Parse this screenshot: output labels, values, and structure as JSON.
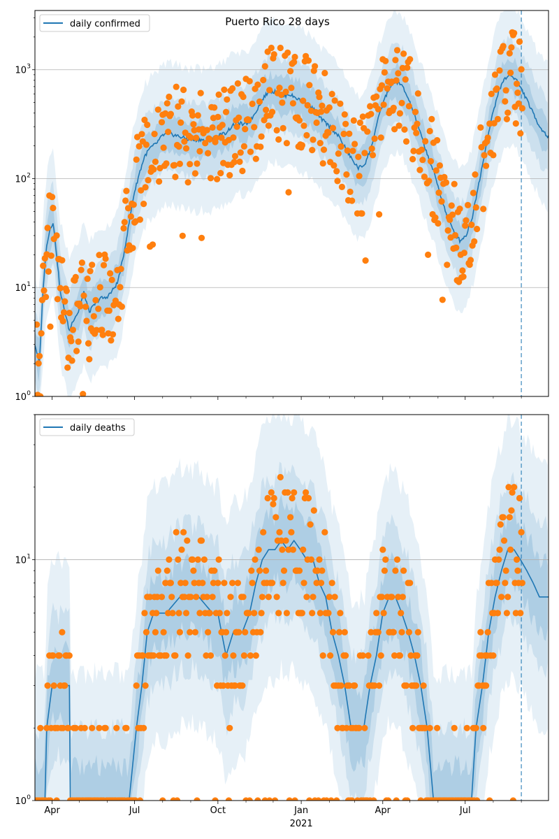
{
  "colors": {
    "line": "#1f77b4",
    "points": "#ff7f0e",
    "band": "#1f77b4",
    "grid": "#b0b0b0",
    "axis": "#000000"
  },
  "figure": {
    "title": "Puerto Rico 28 days",
    "x_tick_labels": [
      "Apr",
      "Jul",
      "Oct",
      "Jan",
      "Apr",
      "Jul"
    ],
    "x_year_label": "2021"
  },
  "chart_data": [
    {
      "type": "line",
      "name": "cases",
      "title": "Puerto Rico 28 days",
      "legend_label": "daily confirmed",
      "legend_position": "upper-left",
      "yscale": "log",
      "ylim": [
        1,
        3500
      ],
      "xlim": [
        "2020-03-13",
        "2021-10-01"
      ],
      "y_ticks": [
        1,
        10,
        100,
        1000
      ],
      "y_tick_labels": [
        {
          "base": "10",
          "exp": "0"
        },
        {
          "base": "10",
          "exp": "1"
        },
        {
          "base": "10",
          "exp": "2"
        },
        {
          "base": "10",
          "exp": "3"
        }
      ],
      "grid": "horizontal",
      "forecast_date": "2021-09-01",
      "series": [
        {
          "name": "daily confirmed",
          "points": [
            [
              "2020-03-13",
              3
            ],
            [
              "2020-03-18",
              2
            ],
            [
              "2020-03-22",
              10
            ],
            [
              "2020-03-26",
              25
            ],
            [
              "2020-03-30",
              35
            ],
            [
              "2020-04-02",
              40
            ],
            [
              "2020-04-06",
              20
            ],
            [
              "2020-04-10",
              9
            ],
            [
              "2020-04-15",
              6
            ],
            [
              "2020-04-20",
              4
            ],
            [
              "2020-04-24",
              5
            ],
            [
              "2020-04-30",
              6
            ],
            [
              "2020-05-06",
              9
            ],
            [
              "2020-05-12",
              6
            ],
            [
              "2020-05-18",
              7
            ],
            [
              "2020-05-24",
              8
            ],
            [
              "2020-05-30",
              8
            ],
            [
              "2020-06-05",
              9
            ],
            [
              "2020-06-12",
              11
            ],
            [
              "2020-06-18",
              18
            ],
            [
              "2020-06-24",
              35
            ],
            [
              "2020-06-30",
              70
            ],
            [
              "2020-07-06",
              110
            ],
            [
              "2020-07-12",
              160
            ],
            [
              "2020-07-18",
              190
            ],
            [
              "2020-07-25",
              210
            ],
            [
              "2020-08-01",
              250
            ],
            [
              "2020-08-08",
              260
            ],
            [
              "2020-08-15",
              250
            ],
            [
              "2020-08-22",
              240
            ],
            [
              "2020-08-29",
              230
            ],
            [
              "2020-09-05",
              225
            ],
            [
              "2020-09-12",
              230
            ],
            [
              "2020-09-18",
              220
            ],
            [
              "2020-09-25",
              230
            ],
            [
              "2020-10-02",
              250
            ],
            [
              "2020-10-09",
              260
            ],
            [
              "2020-10-16",
              300
            ],
            [
              "2020-10-23",
              330
            ],
            [
              "2020-10-30",
              310
            ],
            [
              "2020-11-06",
              340
            ],
            [
              "2020-11-13",
              430
            ],
            [
              "2020-11-20",
              550
            ],
            [
              "2020-11-27",
              640
            ],
            [
              "2020-12-04",
              620
            ],
            [
              "2020-12-11",
              560
            ],
            [
              "2020-12-18",
              600
            ],
            [
              "2020-12-25",
              560
            ],
            [
              "2021-01-01",
              520
            ],
            [
              "2021-01-08",
              480
            ],
            [
              "2021-01-15",
              430
            ],
            [
              "2021-01-22",
              360
            ],
            [
              "2021-01-29",
              320
            ],
            [
              "2021-02-05",
              280
            ],
            [
              "2021-02-12",
              240
            ],
            [
              "2021-02-19",
              190
            ],
            [
              "2021-02-26",
              150
            ],
            [
              "2021-03-05",
              125
            ],
            [
              "2021-03-12",
              135
            ],
            [
              "2021-03-19",
              190
            ],
            [
              "2021-03-26",
              330
            ],
            [
              "2021-04-02",
              520
            ],
            [
              "2021-04-09",
              700
            ],
            [
              "2021-04-16",
              780
            ],
            [
              "2021-04-23",
              700
            ],
            [
              "2021-04-30",
              520
            ],
            [
              "2021-05-07",
              360
            ],
            [
              "2021-05-14",
              240
            ],
            [
              "2021-05-21",
              160
            ],
            [
              "2021-05-28",
              110
            ],
            [
              "2021-06-04",
              70
            ],
            [
              "2021-06-11",
              45
            ],
            [
              "2021-06-18",
              33
            ],
            [
              "2021-06-25",
              27
            ],
            [
              "2021-07-02",
              30
            ],
            [
              "2021-07-09",
              45
            ],
            [
              "2021-07-16",
              90
            ],
            [
              "2021-07-23",
              180
            ],
            [
              "2021-07-30",
              350
            ],
            [
              "2021-08-06",
              600
            ],
            [
              "2021-08-13",
              820
            ],
            [
              "2021-08-20",
              900
            ],
            [
              "2021-08-27",
              800
            ],
            [
              "2021-09-03",
              620
            ],
            [
              "2021-09-10",
              470
            ],
            [
              "2021-09-17",
              350
            ],
            [
              "2021-09-24",
              280
            ],
            [
              "2021-10-01",
              240
            ]
          ]
        }
      ]
    },
    {
      "type": "line",
      "name": "deaths",
      "legend_label": "daily deaths",
      "legend_position": "upper-left",
      "yscale": "log",
      "ylim": [
        1,
        40
      ],
      "xlim": [
        "2020-03-13",
        "2021-10-01"
      ],
      "y_ticks": [
        1,
        10
      ],
      "y_tick_labels": [
        {
          "base": "10",
          "exp": "0"
        },
        {
          "base": "10",
          "exp": "1"
        }
      ],
      "grid": "horizontal",
      "forecast_date": "2021-09-01",
      "series": [
        {
          "name": "daily deaths",
          "points": [
            [
              "2020-03-13",
              1
            ],
            [
              "2020-03-22",
              1
            ],
            [
              "2020-03-24",
              1
            ],
            [
              "2020-03-26",
              2
            ],
            [
              "2020-04-01",
              3
            ],
            [
              "2020-04-20",
              3
            ],
            [
              "2020-04-21",
              1
            ],
            [
              "2020-06-25",
              1
            ],
            [
              "2020-07-03",
              2
            ],
            [
              "2020-07-09",
              3
            ],
            [
              "2020-07-15",
              5
            ],
            [
              "2020-07-22",
              6
            ],
            [
              "2020-08-05",
              6
            ],
            [
              "2020-08-20",
              7
            ],
            [
              "2020-09-10",
              7
            ],
            [
              "2020-09-25",
              6
            ],
            [
              "2020-10-01",
              6
            ],
            [
              "2020-10-05",
              5
            ],
            [
              "2020-10-10",
              4
            ],
            [
              "2020-10-18",
              5
            ],
            [
              "2020-10-28",
              5
            ],
            [
              "2020-11-05",
              6
            ],
            [
              "2020-11-12",
              8
            ],
            [
              "2020-11-19",
              10
            ],
            [
              "2020-11-26",
              11
            ],
            [
              "2020-12-03",
              11
            ],
            [
              "2020-12-10",
              12
            ],
            [
              "2020-12-17",
              11
            ],
            [
              "2020-12-24",
              12
            ],
            [
              "2020-12-31",
              11
            ],
            [
              "2021-01-07",
              10
            ],
            [
              "2021-01-14",
              10
            ],
            [
              "2021-01-21",
              8
            ],
            [
              "2021-01-28",
              7
            ],
            [
              "2021-02-04",
              5
            ],
            [
              "2021-02-11",
              4
            ],
            [
              "2021-02-18",
              3
            ],
            [
              "2021-02-25",
              2
            ],
            [
              "2021-03-04",
              2
            ],
            [
              "2021-03-11",
              2
            ],
            [
              "2021-03-18",
              3
            ],
            [
              "2021-03-25",
              4
            ],
            [
              "2021-04-01",
              6
            ],
            [
              "2021-04-08",
              7
            ],
            [
              "2021-04-15",
              7
            ],
            [
              "2021-04-22",
              6
            ],
            [
              "2021-04-29",
              5
            ],
            [
              "2021-05-06",
              4
            ],
            [
              "2021-05-13",
              3
            ],
            [
              "2021-05-20",
              2
            ],
            [
              "2021-05-27",
              1
            ],
            [
              "2021-06-10",
              1
            ],
            [
              "2021-06-24",
              1
            ],
            [
              "2021-07-08",
              1
            ],
            [
              "2021-07-13",
              2
            ],
            [
              "2021-07-20",
              3
            ],
            [
              "2021-07-27",
              5
            ],
            [
              "2021-08-03",
              7
            ],
            [
              "2021-08-10",
              9
            ],
            [
              "2021-08-17",
              11
            ],
            [
              "2021-08-24",
              11
            ],
            [
              "2021-08-31",
              10
            ],
            [
              "2021-09-07",
              9
            ],
            [
              "2021-09-14",
              8
            ],
            [
              "2021-09-21",
              7
            ],
            [
              "2021-09-28",
              7
            ],
            [
              "2021-10-01",
              7
            ]
          ]
        }
      ]
    }
  ]
}
